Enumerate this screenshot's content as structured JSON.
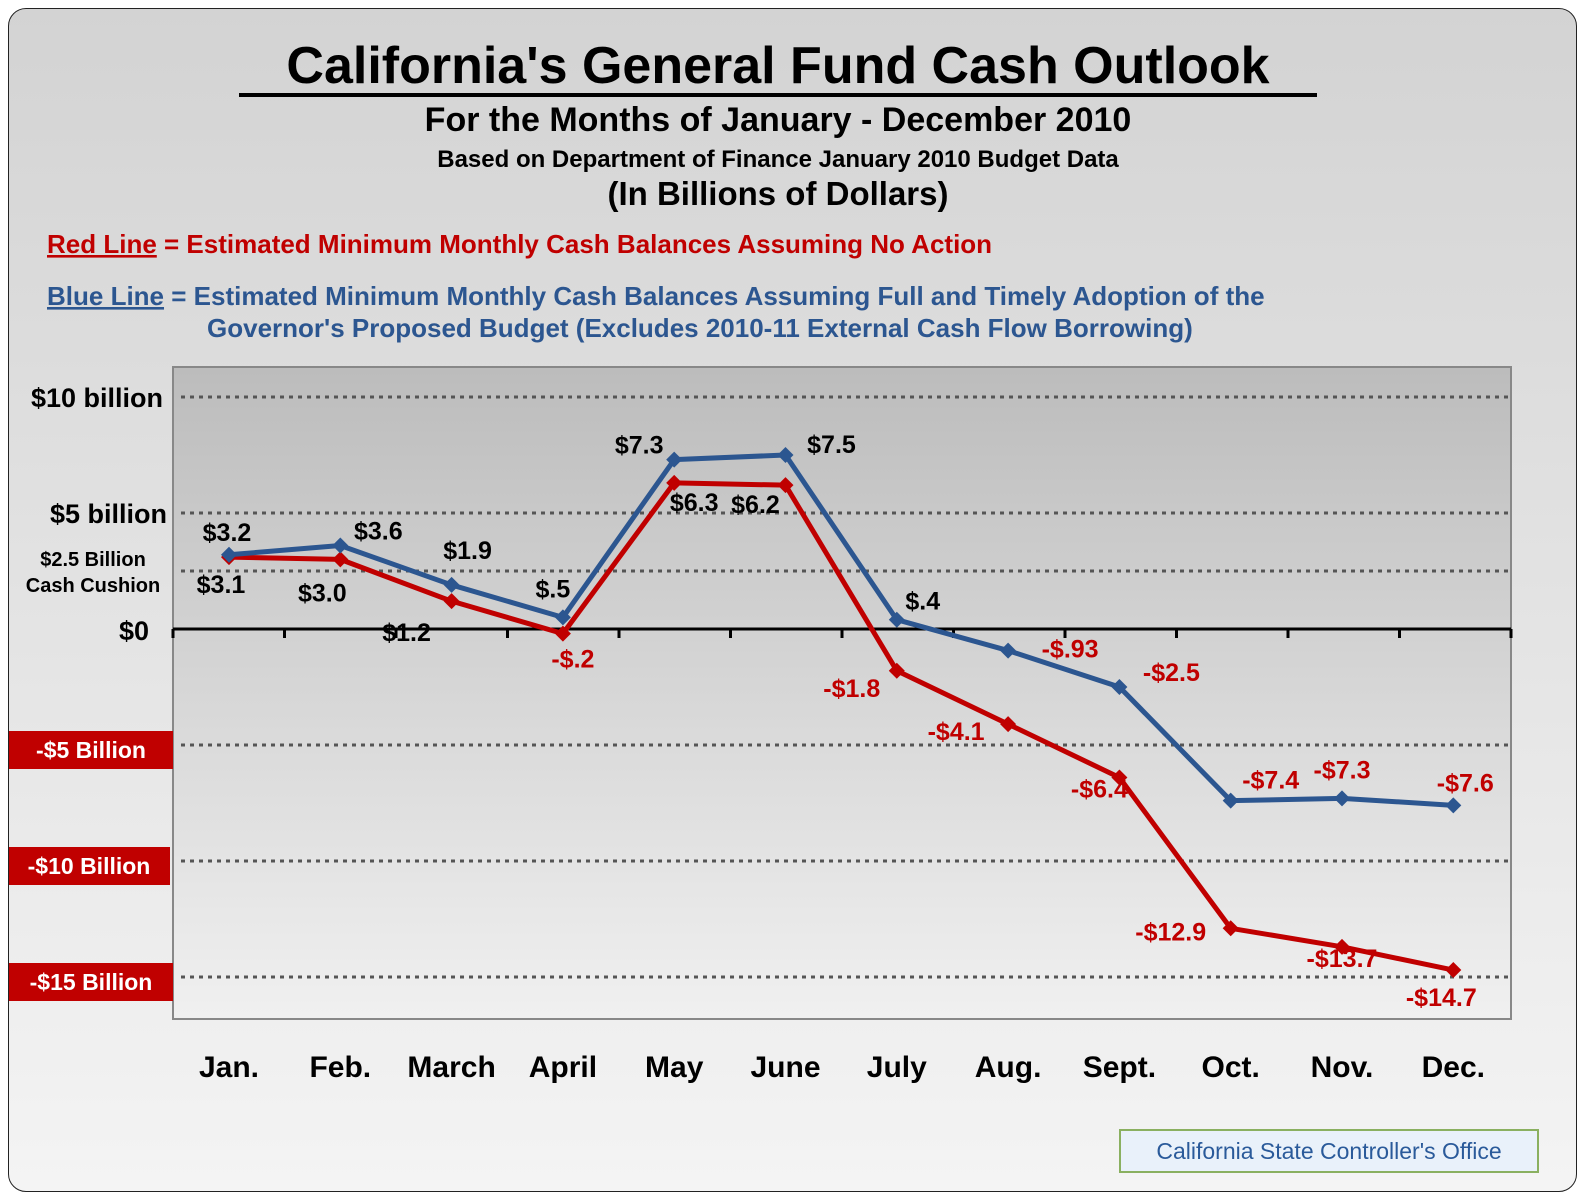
{
  "chart_data": {
    "type": "line",
    "title": "California's General Fund Cash Outlook",
    "subtitle": "For the Months of January - December 2010",
    "basis_note": "Based on Department of Finance January 2010 Budget Data",
    "units_note": "(In Billions of Dollars)",
    "legend": {
      "red_key": "Red Line",
      "red_desc": " = Estimated Minimum Monthly Cash Balances Assuming No Action",
      "blue_key": "Blue Line",
      "blue_desc_line1": " = Estimated Minimum Monthly Cash Balances Assuming Full and Timely Adoption of the",
      "blue_desc_line2": "Governor's Proposed Budget (Excludes 2010-11 External Cash Flow Borrowing)"
    },
    "categories": [
      "Jan.",
      "Feb.",
      "March",
      "April",
      "May",
      "June",
      "July",
      "Aug.",
      "Sept.",
      "Oct.",
      "Nov.",
      "Dec."
    ],
    "series": [
      {
        "color": "#c00000",
        "values": [
          3.1,
          3.0,
          1.2,
          -0.2,
          6.3,
          6.2,
          -1.8,
          -4.1,
          -6.4,
          -12.9,
          -13.7,
          -14.7
        ],
        "labels": [
          "$3.1",
          "$3.0",
          "$1.2",
          "-$.2",
          "$6.3",
          "$6.2",
          "-$1.8",
          "-$4.1",
          "-$6.4",
          "-$12.9",
          "-$13.7",
          "-$14.7"
        ]
      },
      {
        "color": "#2c5690",
        "values": [
          3.2,
          3.6,
          1.9,
          0.5,
          7.3,
          7.5,
          0.4,
          -0.93,
          -2.5,
          -7.4,
          -7.3,
          -7.6
        ],
        "labels": [
          "$3.2",
          "$3.6",
          "$1.9",
          "$.5",
          "$7.3",
          "$7.5",
          "$.4",
          "-$.93",
          "-$2.5",
          "-$7.4",
          "-$7.3",
          "-$7.6"
        ]
      }
    ],
    "y_axis_labels": {
      "ten": "$10 billion",
      "five": "$5 billion",
      "cushion_line1": "$2.5 Billion",
      "cushion_line2": "Cash Cushion",
      "zero": "$0",
      "neg5": "-$5 Billion",
      "neg10": "-$10 Billion",
      "neg15": "-$15 Billion"
    },
    "gridlines": [
      10,
      5,
      2.5,
      -5,
      -10,
      -15
    ],
    "ylim": [
      -17,
      11
    ],
    "grid": true,
    "colors": {
      "red_line": "#c00000",
      "blue_line": "#2c5690",
      "negative_axis_box": "#c00000"
    }
  },
  "footer": "California State Controller's Office"
}
